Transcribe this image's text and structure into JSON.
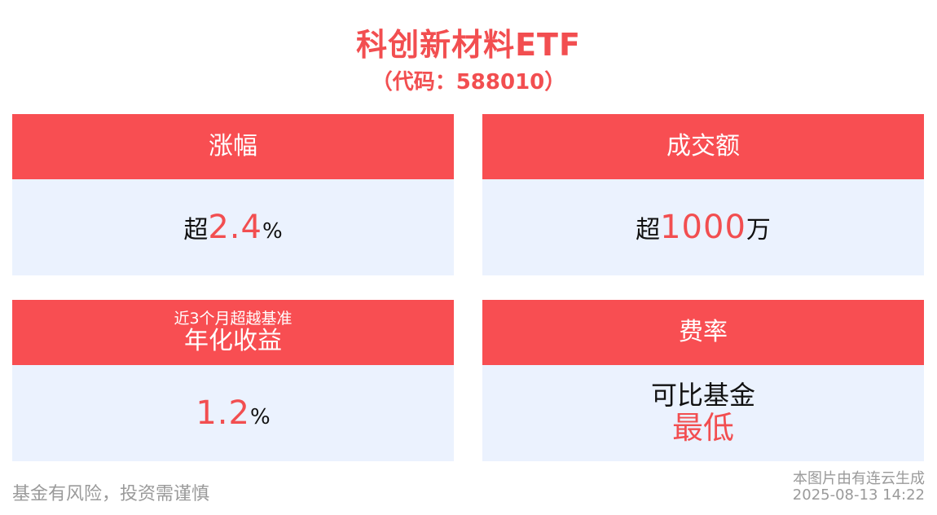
{
  "header": {
    "title": "科创新材料ETF",
    "code": "（代码：588010）"
  },
  "cards": {
    "change": {
      "title": "涨幅",
      "prefix": "超",
      "value": "2.4",
      "suffix": "%"
    },
    "turnover": {
      "title": "成交额",
      "prefix": "超",
      "value": "1000",
      "suffix": "万"
    },
    "excess": {
      "subtitle": "近3个月超越基准",
      "title": "年化收益",
      "value": "1.2",
      "suffix": "%"
    },
    "fee": {
      "title": "费率",
      "line1": "可比基金",
      "line2": "最低"
    }
  },
  "footer": {
    "disclaimer": "基金有风险，投资需谨慎",
    "credit": "本图片由有连云生成",
    "timestamp": "2025-08-13 14:22"
  },
  "colors": {
    "accent": "#f84e52",
    "panel": "#ebf2fe"
  }
}
